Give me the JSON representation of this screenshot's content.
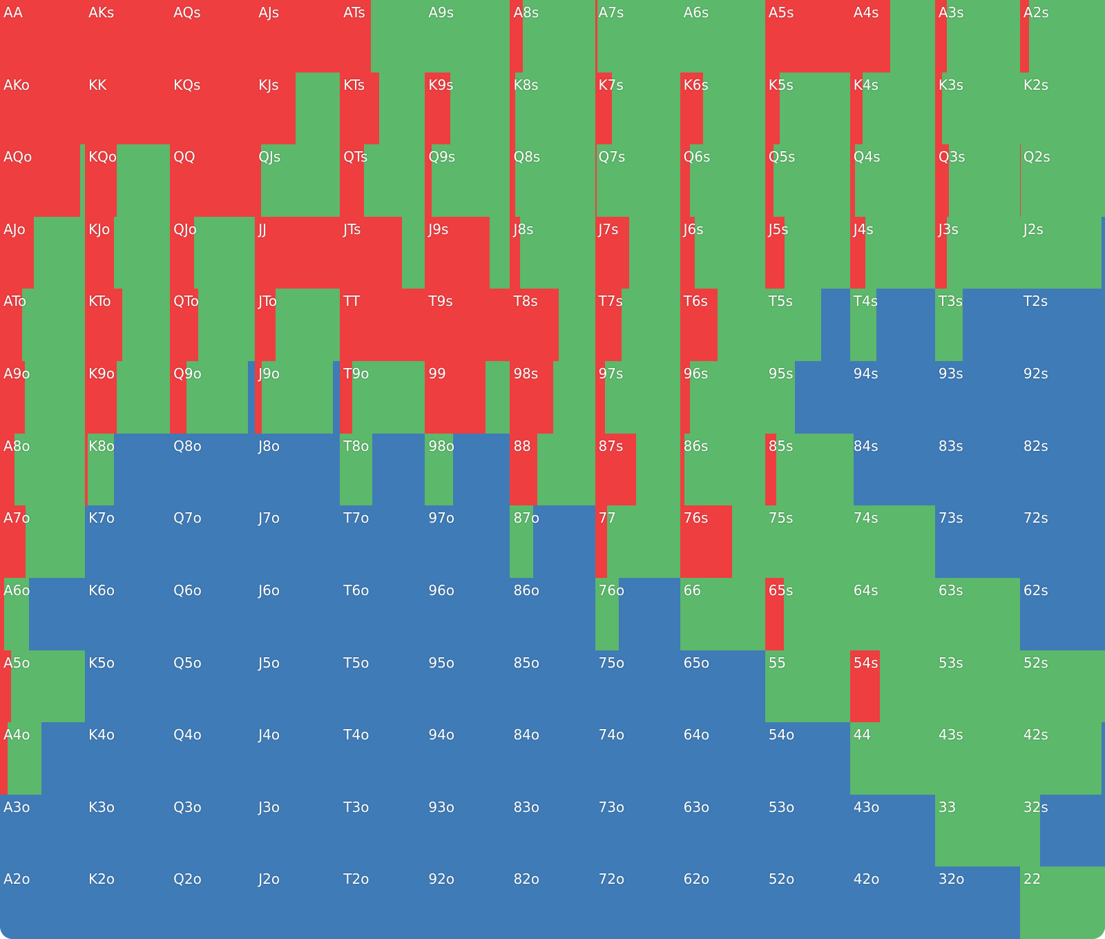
{
  "colors": {
    "raise": "#ef3e40",
    "call": "#5cb86a",
    "fold": "#3f7bb7"
  },
  "rows": [
    [
      {
        "hand": "AA",
        "raise": 100,
        "call": 0,
        "fold": 0
      },
      {
        "hand": "AKs",
        "raise": 100,
        "call": 0,
        "fold": 0
      },
      {
        "hand": "AQs",
        "raise": 100,
        "call": 0,
        "fold": 0
      },
      {
        "hand": "AJs",
        "raise": 100,
        "call": 0,
        "fold": 0
      },
      {
        "hand": "ATs",
        "raise": 36,
        "call": 64,
        "fold": 0
      },
      {
        "hand": "A9s",
        "raise": 0,
        "call": 100,
        "fold": 0
      },
      {
        "hand": "A8s",
        "raise": 15,
        "call": 85,
        "fold": 0
      },
      {
        "hand": "A7s",
        "raise": 3,
        "call": 97,
        "fold": 0
      },
      {
        "hand": "A6s",
        "raise": 0,
        "call": 100,
        "fold": 0
      },
      {
        "hand": "A5s",
        "raise": 100,
        "call": 0,
        "fold": 0
      },
      {
        "hand": "A4s",
        "raise": 47,
        "call": 53,
        "fold": 0
      },
      {
        "hand": "A3s",
        "raise": 14,
        "call": 86,
        "fold": 0
      },
      {
        "hand": "A2s",
        "raise": 11,
        "call": 89,
        "fold": 0
      }
    ],
    [
      {
        "hand": "AKo",
        "raise": 100,
        "call": 0,
        "fold": 0
      },
      {
        "hand": "KK",
        "raise": 100,
        "call": 0,
        "fold": 0
      },
      {
        "hand": "KQs",
        "raise": 100,
        "call": 0,
        "fold": 0
      },
      {
        "hand": "KJs",
        "raise": 48,
        "call": 52,
        "fold": 0
      },
      {
        "hand": "KTs",
        "raise": 46,
        "call": 54,
        "fold": 0
      },
      {
        "hand": "K9s",
        "raise": 30,
        "call": 70,
        "fold": 0
      },
      {
        "hand": "K8s",
        "raise": 6,
        "call": 94,
        "fold": 0
      },
      {
        "hand": "K7s",
        "raise": 20,
        "call": 80,
        "fold": 0
      },
      {
        "hand": "K6s",
        "raise": 27,
        "call": 73,
        "fold": 0
      },
      {
        "hand": "K5s",
        "raise": 17,
        "call": 83,
        "fold": 0
      },
      {
        "hand": "K4s",
        "raise": 15,
        "call": 85,
        "fold": 0
      },
      {
        "hand": "K3s",
        "raise": 8,
        "call": 92,
        "fold": 0
      },
      {
        "hand": "K2s",
        "raise": 0,
        "call": 100,
        "fold": 0
      }
    ],
    [
      {
        "hand": "AQo",
        "raise": 94,
        "call": 6,
        "fold": 0
      },
      {
        "hand": "KQo",
        "raise": 37,
        "call": 63,
        "fold": 0
      },
      {
        "hand": "QQ",
        "raise": 100,
        "call": 0,
        "fold": 0
      },
      {
        "hand": "QJs",
        "raise": 7,
        "call": 93,
        "fold": 0
      },
      {
        "hand": "QTs",
        "raise": 28,
        "call": 72,
        "fold": 0
      },
      {
        "hand": "Q9s",
        "raise": 8,
        "call": 92,
        "fold": 0
      },
      {
        "hand": "Q8s",
        "raise": 6,
        "call": 94,
        "fold": 0
      },
      {
        "hand": "Q7s",
        "raise": 2,
        "call": 98,
        "fold": 0
      },
      {
        "hand": "Q6s",
        "raise": 12,
        "call": 88,
        "fold": 0
      },
      {
        "hand": "Q5s",
        "raise": 10,
        "call": 90,
        "fold": 0
      },
      {
        "hand": "Q4s",
        "raise": 6,
        "call": 94,
        "fold": 0
      },
      {
        "hand": "Q3s",
        "raise": 16,
        "call": 84,
        "fold": 0
      },
      {
        "hand": "Q2s",
        "raise": 1,
        "call": 99,
        "fold": 0
      }
    ],
    [
      {
        "hand": "AJo",
        "raise": 40,
        "call": 60,
        "fold": 0
      },
      {
        "hand": "KJo",
        "raise": 34,
        "call": 66,
        "fold": 0
      },
      {
        "hand": "QJo",
        "raise": 28,
        "call": 72,
        "fold": 0
      },
      {
        "hand": "JJ",
        "raise": 100,
        "call": 0,
        "fold": 0
      },
      {
        "hand": "JTs",
        "raise": 73,
        "call": 27,
        "fold": 0
      },
      {
        "hand": "J9s",
        "raise": 76,
        "call": 24,
        "fold": 0
      },
      {
        "hand": "J8s",
        "raise": 12,
        "call": 88,
        "fold": 0
      },
      {
        "hand": "J7s",
        "raise": 40,
        "call": 60,
        "fold": 0
      },
      {
        "hand": "J6s",
        "raise": 17,
        "call": 83,
        "fold": 0
      },
      {
        "hand": "J5s",
        "raise": 23,
        "call": 77,
        "fold": 0
      },
      {
        "hand": "J4s",
        "raise": 18,
        "call": 82,
        "fold": 0
      },
      {
        "hand": "J3s",
        "raise": 14,
        "call": 86,
        "fold": 0
      },
      {
        "hand": "J2s",
        "raise": 0,
        "call": 96,
        "fold": 4
      }
    ],
    [
      {
        "hand": "ATo",
        "raise": 26,
        "call": 74,
        "fold": 0
      },
      {
        "hand": "KTo",
        "raise": 44,
        "call": 56,
        "fold": 0
      },
      {
        "hand": "QTo",
        "raise": 33,
        "call": 67,
        "fold": 0
      },
      {
        "hand": "JTo",
        "raise": 24,
        "call": 76,
        "fold": 0
      },
      {
        "hand": "TT",
        "raise": 100,
        "call": 0,
        "fold": 0
      },
      {
        "hand": "T9s",
        "raise": 100,
        "call": 0,
        "fold": 0
      },
      {
        "hand": "T8s",
        "raise": 57,
        "call": 43,
        "fold": 0
      },
      {
        "hand": "T7s",
        "raise": 31,
        "call": 69,
        "fold": 0
      },
      {
        "hand": "T6s",
        "raise": 44,
        "call": 56,
        "fold": 0
      },
      {
        "hand": "T5s",
        "raise": 0,
        "call": 66,
        "fold": 34
      },
      {
        "hand": "T4s",
        "raise": 0,
        "call": 31,
        "fold": 69
      },
      {
        "hand": "T3s",
        "raise": 0,
        "call": 33,
        "fold": 67
      },
      {
        "hand": "T2s",
        "raise": 0,
        "call": 0,
        "fold": 100
      }
    ],
    [
      {
        "hand": "A9o",
        "raise": 29,
        "call": 71,
        "fold": 0
      },
      {
        "hand": "K9o",
        "raise": 37,
        "call": 63,
        "fold": 0
      },
      {
        "hand": "Q9o",
        "raise": 19,
        "call": 73,
        "fold": 8
      },
      {
        "hand": "J9o",
        "raise": 8,
        "call": 84,
        "fold": 8
      },
      {
        "hand": "T9o",
        "raise": 14,
        "call": 86,
        "fold": 0
      },
      {
        "hand": "99",
        "raise": 71,
        "call": 29,
        "fold": 0
      },
      {
        "hand": "98s",
        "raise": 51,
        "call": 49,
        "fold": 0
      },
      {
        "hand": "97s",
        "raise": 12,
        "call": 88,
        "fold": 0
      },
      {
        "hand": "96s",
        "raise": 12,
        "call": 88,
        "fold": 0
      },
      {
        "hand": "95s",
        "raise": 0,
        "call": 35,
        "fold": 65
      },
      {
        "hand": "94s",
        "raise": 0,
        "call": 0,
        "fold": 100
      },
      {
        "hand": "93s",
        "raise": 0,
        "call": 0,
        "fold": 100
      },
      {
        "hand": "92s",
        "raise": 0,
        "call": 0,
        "fold": 100
      }
    ],
    [
      {
        "hand": "A8o",
        "raise": 17,
        "call": 83,
        "fold": 0
      },
      {
        "hand": "K8o",
        "raise": 3,
        "call": 31,
        "fold": 66
      },
      {
        "hand": "Q8o",
        "raise": 0,
        "call": 0,
        "fold": 100
      },
      {
        "hand": "J8o",
        "raise": 0,
        "call": 0,
        "fold": 100
      },
      {
        "hand": "T8o",
        "raise": 0,
        "call": 38,
        "fold": 62
      },
      {
        "hand": "98o",
        "raise": 0,
        "call": 33,
        "fold": 67
      },
      {
        "hand": "88",
        "raise": 32,
        "call": 68,
        "fold": 0
      },
      {
        "hand": "87s",
        "raise": 48,
        "call": 52,
        "fold": 0
      },
      {
        "hand": "86s",
        "raise": 5,
        "call": 95,
        "fold": 0
      },
      {
        "hand": "85s",
        "raise": 13,
        "call": 87,
        "fold": 0
      },
      {
        "hand": "84s",
        "raise": 0,
        "call": 4,
        "fold": 96
      },
      {
        "hand": "83s",
        "raise": 0,
        "call": 0,
        "fold": 100
      },
      {
        "hand": "82s",
        "raise": 0,
        "call": 0,
        "fold": 100
      }
    ],
    [
      {
        "hand": "A7o",
        "raise": 30,
        "call": 70,
        "fold": 0
      },
      {
        "hand": "K7o",
        "raise": 0,
        "call": 0,
        "fold": 100
      },
      {
        "hand": "Q7o",
        "raise": 0,
        "call": 0,
        "fold": 100
      },
      {
        "hand": "J7o",
        "raise": 0,
        "call": 0,
        "fold": 100
      },
      {
        "hand": "T7o",
        "raise": 0,
        "call": 0,
        "fold": 100
      },
      {
        "hand": "97o",
        "raise": 0,
        "call": 0,
        "fold": 100
      },
      {
        "hand": "87o",
        "raise": 0,
        "call": 27,
        "fold": 73
      },
      {
        "hand": "77",
        "raise": 14,
        "call": 86,
        "fold": 0
      },
      {
        "hand": "76s",
        "raise": 61,
        "call": 39,
        "fold": 0
      },
      {
        "hand": "75s",
        "raise": 0,
        "call": 100,
        "fold": 0
      },
      {
        "hand": "74s",
        "raise": 0,
        "call": 100,
        "fold": 0
      },
      {
        "hand": "73s",
        "raise": 0,
        "call": 0,
        "fold": 100
      },
      {
        "hand": "72s",
        "raise": 0,
        "call": 0,
        "fold": 100
      }
    ],
    [
      {
        "hand": "A6o",
        "raise": 5,
        "call": 29,
        "fold": 66
      },
      {
        "hand": "K6o",
        "raise": 0,
        "call": 0,
        "fold": 100
      },
      {
        "hand": "Q6o",
        "raise": 0,
        "call": 0,
        "fold": 100
      },
      {
        "hand": "J6o",
        "raise": 0,
        "call": 0,
        "fold": 100
      },
      {
        "hand": "T6o",
        "raise": 0,
        "call": 0,
        "fold": 100
      },
      {
        "hand": "96o",
        "raise": 0,
        "call": 0,
        "fold": 100
      },
      {
        "hand": "86o",
        "raise": 0,
        "call": 0,
        "fold": 100
      },
      {
        "hand": "76o",
        "raise": 0,
        "call": 28,
        "fold": 72
      },
      {
        "hand": "66",
        "raise": 0,
        "call": 100,
        "fold": 0
      },
      {
        "hand": "65s",
        "raise": 22,
        "call": 78,
        "fold": 0
      },
      {
        "hand": "64s",
        "raise": 0,
        "call": 100,
        "fold": 0
      },
      {
        "hand": "63s",
        "raise": 0,
        "call": 100,
        "fold": 0
      },
      {
        "hand": "62s",
        "raise": 0,
        "call": 0,
        "fold": 100
      }
    ],
    [
      {
        "hand": "A5o",
        "raise": 13,
        "call": 87,
        "fold": 0
      },
      {
        "hand": "K5o",
        "raise": 0,
        "call": 0,
        "fold": 100
      },
      {
        "hand": "Q5o",
        "raise": 0,
        "call": 0,
        "fold": 100
      },
      {
        "hand": "J5o",
        "raise": 0,
        "call": 0,
        "fold": 100
      },
      {
        "hand": "T5o",
        "raise": 0,
        "call": 0,
        "fold": 100
      },
      {
        "hand": "95o",
        "raise": 0,
        "call": 0,
        "fold": 100
      },
      {
        "hand": "85o",
        "raise": 0,
        "call": 0,
        "fold": 100
      },
      {
        "hand": "75o",
        "raise": 0,
        "call": 0,
        "fold": 100
      },
      {
        "hand": "65o",
        "raise": 0,
        "call": 0,
        "fold": 100
      },
      {
        "hand": "55",
        "raise": 0,
        "call": 100,
        "fold": 0
      },
      {
        "hand": "54s",
        "raise": 35,
        "call": 65,
        "fold": 0
      },
      {
        "hand": "53s",
        "raise": 0,
        "call": 100,
        "fold": 0
      },
      {
        "hand": "52s",
        "raise": 0,
        "call": 100,
        "fold": 0
      }
    ],
    [
      {
        "hand": "A4o",
        "raise": 9,
        "call": 40,
        "fold": 51
      },
      {
        "hand": "K4o",
        "raise": 0,
        "call": 0,
        "fold": 100
      },
      {
        "hand": "Q4o",
        "raise": 0,
        "call": 0,
        "fold": 100
      },
      {
        "hand": "J4o",
        "raise": 0,
        "call": 0,
        "fold": 100
      },
      {
        "hand": "T4o",
        "raise": 0,
        "call": 0,
        "fold": 100
      },
      {
        "hand": "94o",
        "raise": 0,
        "call": 0,
        "fold": 100
      },
      {
        "hand": "84o",
        "raise": 0,
        "call": 0,
        "fold": 100
      },
      {
        "hand": "74o",
        "raise": 0,
        "call": 0,
        "fold": 100
      },
      {
        "hand": "64o",
        "raise": 0,
        "call": 0,
        "fold": 100
      },
      {
        "hand": "54o",
        "raise": 0,
        "call": 0,
        "fold": 100
      },
      {
        "hand": "44",
        "raise": 0,
        "call": 100,
        "fold": 0
      },
      {
        "hand": "43s",
        "raise": 0,
        "call": 100,
        "fold": 0
      },
      {
        "hand": "42s",
        "raise": 0,
        "call": 96,
        "fold": 4
      }
    ],
    [
      {
        "hand": "A3o",
        "raise": 0,
        "call": 0,
        "fold": 100
      },
      {
        "hand": "K3o",
        "raise": 0,
        "call": 0,
        "fold": 100
      },
      {
        "hand": "Q3o",
        "raise": 0,
        "call": 0,
        "fold": 100
      },
      {
        "hand": "J3o",
        "raise": 0,
        "call": 0,
        "fold": 100
      },
      {
        "hand": "T3o",
        "raise": 0,
        "call": 0,
        "fold": 100
      },
      {
        "hand": "93o",
        "raise": 0,
        "call": 0,
        "fold": 100
      },
      {
        "hand": "83o",
        "raise": 0,
        "call": 0,
        "fold": 100
      },
      {
        "hand": "73o",
        "raise": 0,
        "call": 0,
        "fold": 100
      },
      {
        "hand": "63o",
        "raise": 0,
        "call": 0,
        "fold": 100
      },
      {
        "hand": "53o",
        "raise": 0,
        "call": 0,
        "fold": 100
      },
      {
        "hand": "43o",
        "raise": 0,
        "call": 0,
        "fold": 100
      },
      {
        "hand": "33",
        "raise": 0,
        "call": 100,
        "fold": 0
      },
      {
        "hand": "32s",
        "raise": 0,
        "call": 24,
        "fold": 76
      }
    ],
    [
      {
        "hand": "A2o",
        "raise": 0,
        "call": 0,
        "fold": 100
      },
      {
        "hand": "K2o",
        "raise": 0,
        "call": 0,
        "fold": 100
      },
      {
        "hand": "Q2o",
        "raise": 0,
        "call": 0,
        "fold": 100
      },
      {
        "hand": "J2o",
        "raise": 0,
        "call": 0,
        "fold": 100
      },
      {
        "hand": "T2o",
        "raise": 0,
        "call": 0,
        "fold": 100
      },
      {
        "hand": "92o",
        "raise": 0,
        "call": 0,
        "fold": 100
      },
      {
        "hand": "82o",
        "raise": 0,
        "call": 0,
        "fold": 100
      },
      {
        "hand": "72o",
        "raise": 0,
        "call": 0,
        "fold": 100
      },
      {
        "hand": "62o",
        "raise": 0,
        "call": 0,
        "fold": 100
      },
      {
        "hand": "52o",
        "raise": 0,
        "call": 0,
        "fold": 100
      },
      {
        "hand": "42o",
        "raise": 0,
        "call": 0,
        "fold": 100
      },
      {
        "hand": "32o",
        "raise": 0,
        "call": 0,
        "fold": 100
      },
      {
        "hand": "22",
        "raise": 0,
        "call": 100,
        "fold": 0
      }
    ]
  ]
}
